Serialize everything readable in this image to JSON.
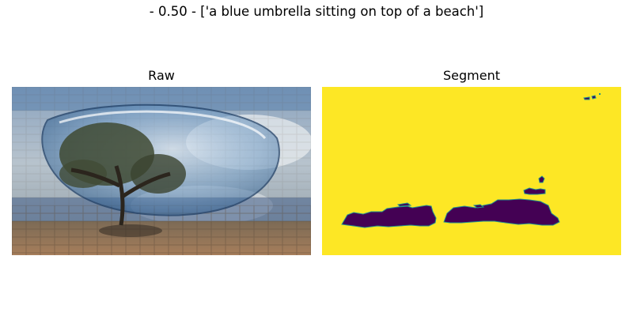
{
  "figure": {
    "suptitle": "- 0.50 - ['a blue umbrella sitting on top of a beach']"
  },
  "panels": {
    "raw": {
      "title": "Raw"
    },
    "segment": {
      "title": "Segment",
      "colors": {
        "background": "#fde725",
        "mask": "#440154",
        "edge": "#21918c"
      }
    }
  }
}
